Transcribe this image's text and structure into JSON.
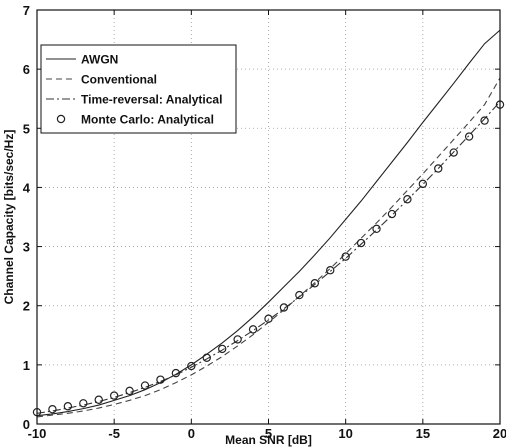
{
  "chart_data": {
    "type": "line",
    "xlabel": "Mean SNR [dB]",
    "ylabel": "Channel Capacity [bits/sec/Hz]",
    "xlim": [
      -10,
      20
    ],
    "ylim": [
      0,
      7
    ],
    "xticks": [
      -10,
      -5,
      0,
      5,
      10,
      15,
      20
    ],
    "yticks": [
      0,
      1,
      2,
      3,
      4,
      5,
      6,
      7
    ],
    "grid": true,
    "legend_position": "top-left",
    "x": [
      -10,
      -9,
      -8,
      -7,
      -6,
      -5,
      -4,
      -3,
      -2,
      -1,
      0,
      1,
      2,
      3,
      4,
      5,
      6,
      7,
      8,
      9,
      10,
      11,
      12,
      13,
      14,
      15,
      16,
      17,
      18,
      19,
      20
    ],
    "series": [
      {
        "name": "AWGN",
        "style": "solid",
        "color": "#222222",
        "values": [
          0.14,
          0.17,
          0.21,
          0.26,
          0.32,
          0.4,
          0.48,
          0.58,
          0.7,
          0.84,
          1.0,
          1.18,
          1.37,
          1.58,
          1.81,
          2.06,
          2.32,
          2.58,
          2.86,
          3.15,
          3.46,
          3.77,
          4.1,
          4.43,
          4.76,
          5.1,
          5.43,
          5.76,
          6.1,
          6.43,
          6.66
        ]
      },
      {
        "name": "Conventional",
        "style": "dashed",
        "color": "#444444",
        "values": [
          0.12,
          0.15,
          0.18,
          0.22,
          0.27,
          0.33,
          0.4,
          0.48,
          0.58,
          0.7,
          0.83,
          0.98,
          1.14,
          1.32,
          1.51,
          1.72,
          1.93,
          2.16,
          2.39,
          2.63,
          2.88,
          3.14,
          3.4,
          3.67,
          3.95,
          4.23,
          4.52,
          4.81,
          5.1,
          5.4,
          5.85
        ]
      },
      {
        "name": "Time-reversal: Analytical",
        "style": "dashdot",
        "color": "#333333",
        "values": [
          0.18,
          0.22,
          0.27,
          0.32,
          0.38,
          0.45,
          0.53,
          0.62,
          0.72,
          0.83,
          0.96,
          1.1,
          1.25,
          1.41,
          1.58,
          1.76,
          1.95,
          2.15,
          2.36,
          2.58,
          2.8,
          3.04,
          3.28,
          3.53,
          3.79,
          4.05,
          4.32,
          4.6,
          4.88,
          5.16,
          5.45
        ]
      },
      {
        "name": "Monte Carlo: Analytical",
        "style": "markers",
        "marker": "circle",
        "color": "#222222",
        "values": [
          0.2,
          0.25,
          0.3,
          0.35,
          0.41,
          0.48,
          0.56,
          0.65,
          0.75,
          0.86,
          0.98,
          1.12,
          1.27,
          1.43,
          1.6,
          1.78,
          1.97,
          2.18,
          2.38,
          2.6,
          2.83,
          3.06,
          3.3,
          3.55,
          3.8,
          4.06,
          4.32,
          4.59,
          4.86,
          5.13,
          5.4
        ]
      }
    ]
  }
}
